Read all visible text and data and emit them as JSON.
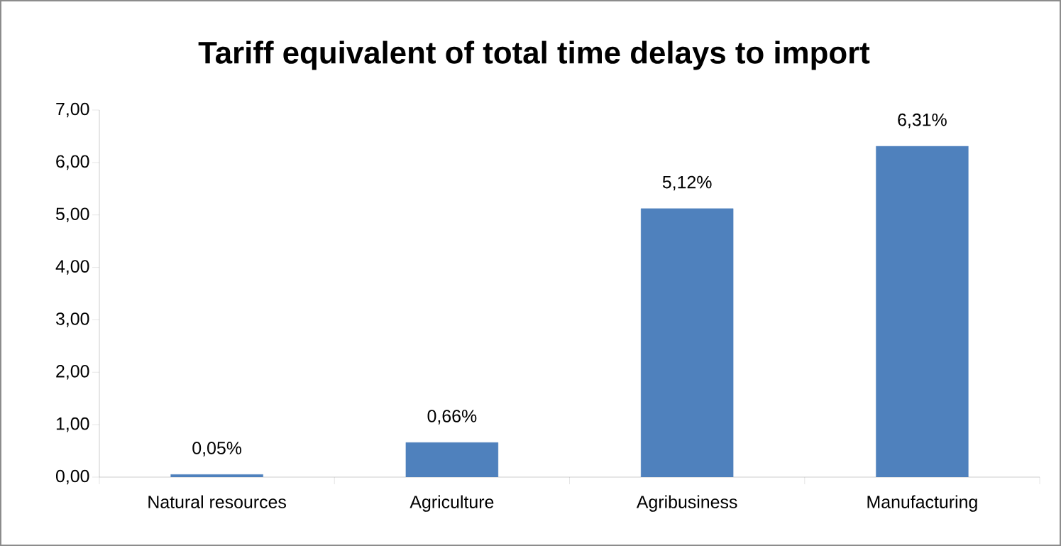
{
  "chart_data": {
    "type": "bar",
    "title": "Tariff equivalent of total time delays to import",
    "categories": [
      "Natural resources",
      "Agriculture",
      "Agribusiness",
      "Manufacturing"
    ],
    "values": [
      0.05,
      0.66,
      5.12,
      6.31
    ],
    "value_labels": [
      "0,05%",
      "0,66%",
      "5,12%",
      "6,31%"
    ],
    "color": "#4f81bd",
    "ylim": [
      0,
      7
    ],
    "yticks": [
      {
        "value": 0,
        "label": "0,00"
      },
      {
        "value": 1,
        "label": "1,00"
      },
      {
        "value": 2,
        "label": "2,00"
      },
      {
        "value": 3,
        "label": "3,00"
      },
      {
        "value": 4,
        "label": "4,00"
      },
      {
        "value": 5,
        "label": "5,00"
      },
      {
        "value": 6,
        "label": "6,00"
      },
      {
        "value": 7,
        "label": "7,00"
      }
    ],
    "grid": false
  }
}
